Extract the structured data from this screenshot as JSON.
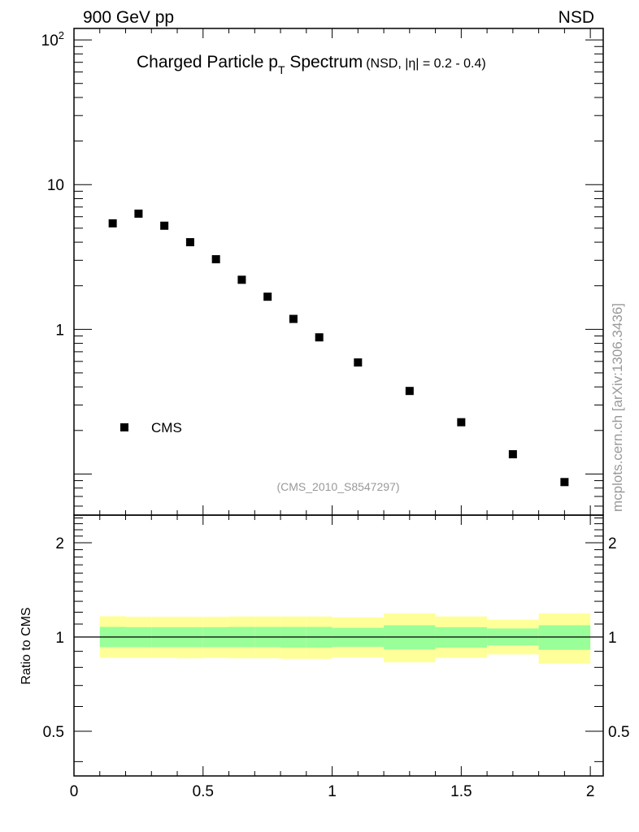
{
  "header": {
    "left": "900 GeV pp",
    "right": "NSD"
  },
  "side_label": "mcplots.cern.ch [arXiv:1306.3436]",
  "chart_data": {
    "type": "scatter",
    "title": {
      "main_before": "Charged Particle p",
      "main_sub": "T",
      "main_after": " Spectrum",
      "detail": "(NSD, |η| = 0.2 - 0.4)"
    },
    "analysis_id": "(CMS_2010_S8547297)",
    "xlim": [
      0,
      2.05
    ],
    "x_ticks": [
      {
        "v": 0,
        "label": "0"
      },
      {
        "v": 0.5,
        "label": "0.5"
      },
      {
        "v": 1,
        "label": "1"
      },
      {
        "v": 1.5,
        "label": "1.5"
      },
      {
        "v": 2,
        "label": "2"
      }
    ],
    "top_panel": {
      "log_scale": true,
      "ylim": [
        0.052,
        120
      ],
      "y_ticks": [
        {
          "v": 100,
          "label": "10",
          "sup": "2"
        },
        {
          "v": 10,
          "label": "10",
          "sup": ""
        },
        {
          "v": 1,
          "label": "1",
          "sup": ""
        }
      ],
      "legend": {
        "label": "CMS",
        "position": "lower-left"
      },
      "series": [
        {
          "name": "CMS",
          "x": [
            0.15,
            0.25,
            0.35,
            0.45,
            0.55,
            0.65,
            0.75,
            0.85,
            0.95,
            1.1,
            1.3,
            1.5,
            1.7,
            1.9
          ],
          "y": [
            5.4,
            6.3,
            5.2,
            4.0,
            3.05,
            2.2,
            1.68,
            1.18,
            0.88,
            0.59,
            0.375,
            0.228,
            0.137,
            0.088
          ]
        }
      ]
    },
    "ratio_panel": {
      "ylabel": "Ratio to CMS",
      "ylim": [
        0.36,
        2.45
      ],
      "log_scale": true,
      "y_ticks": [
        {
          "v": 2,
          "label": "2"
        },
        {
          "v": 1,
          "label": "1"
        },
        {
          "v": 0.5,
          "label": "0.5"
        }
      ],
      "reference_line": 1,
      "bands": [
        {
          "x0": 0.1,
          "x1": 0.2,
          "stat_lo": 0.928,
          "stat_hi": 1.077,
          "tot_lo": 0.858,
          "tot_hi": 1.165
        },
        {
          "x0": 0.2,
          "x1": 0.3,
          "stat_lo": 0.928,
          "stat_hi": 1.075,
          "tot_lo": 0.858,
          "tot_hi": 1.16
        },
        {
          "x0": 0.3,
          "x1": 0.4,
          "stat_lo": 0.928,
          "stat_hi": 1.075,
          "tot_lo": 0.858,
          "tot_hi": 1.16
        },
        {
          "x0": 0.4,
          "x1": 0.5,
          "stat_lo": 0.928,
          "stat_hi": 1.075,
          "tot_lo": 0.855,
          "tot_hi": 1.16
        },
        {
          "x0": 0.5,
          "x1": 0.6,
          "stat_lo": 0.928,
          "stat_hi": 1.075,
          "tot_lo": 0.858,
          "tot_hi": 1.16
        },
        {
          "x0": 0.6,
          "x1": 0.7,
          "stat_lo": 0.928,
          "stat_hi": 1.077,
          "tot_lo": 0.855,
          "tot_hi": 1.163
        },
        {
          "x0": 0.7,
          "x1": 0.8,
          "stat_lo": 0.928,
          "stat_hi": 1.077,
          "tot_lo": 0.855,
          "tot_hi": 1.163
        },
        {
          "x0": 0.8,
          "x1": 0.9,
          "stat_lo": 0.925,
          "stat_hi": 1.077,
          "tot_lo": 0.852,
          "tot_hi": 1.163
        },
        {
          "x0": 0.9,
          "x1": 1.0,
          "stat_lo": 0.925,
          "stat_hi": 1.077,
          "tot_lo": 0.852,
          "tot_hi": 1.163
        },
        {
          "x0": 1.0,
          "x1": 1.2,
          "stat_lo": 0.93,
          "stat_hi": 1.07,
          "tot_lo": 0.862,
          "tot_hi": 1.155
        },
        {
          "x0": 1.2,
          "x1": 1.4,
          "stat_lo": 0.913,
          "stat_hi": 1.09,
          "tot_lo": 0.83,
          "tot_hi": 1.19
        },
        {
          "x0": 1.4,
          "x1": 1.6,
          "stat_lo": 0.925,
          "stat_hi": 1.075,
          "tot_lo": 0.858,
          "tot_hi": 1.163
        },
        {
          "x0": 1.6,
          "x1": 1.8,
          "stat_lo": 0.94,
          "stat_hi": 1.065,
          "tot_lo": 0.88,
          "tot_hi": 1.135
        },
        {
          "x0": 1.8,
          "x1": 2.0,
          "stat_lo": 0.91,
          "stat_hi": 1.09,
          "tot_lo": 0.822,
          "tot_hi": 1.19
        }
      ]
    },
    "colors": {
      "stat_band": "#99ff99",
      "total_band": "#ffff99",
      "marker": "#000000",
      "axes": "#000000",
      "label_gray": "#999999"
    }
  }
}
